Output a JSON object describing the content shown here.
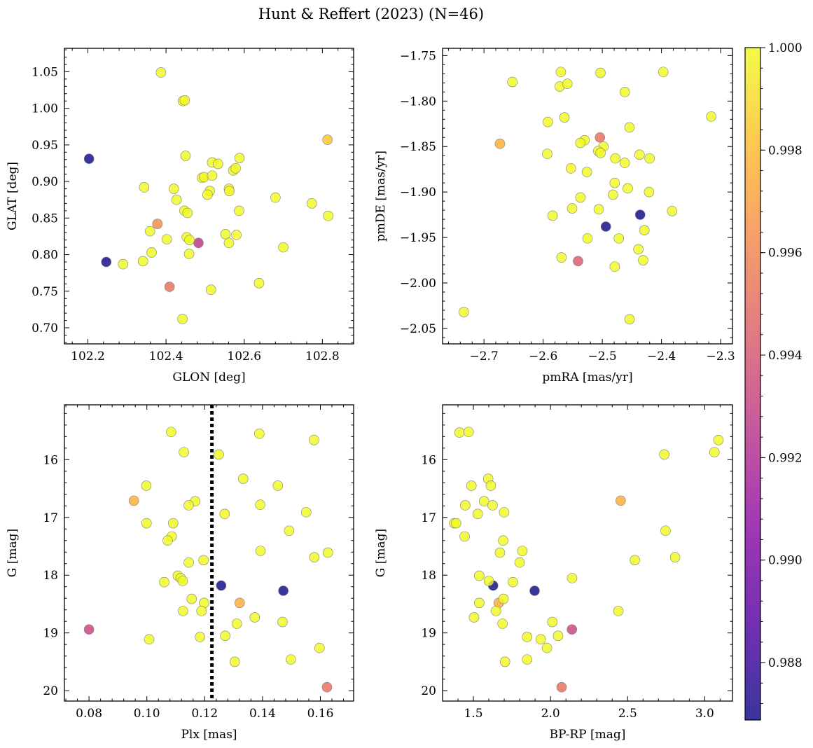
{
  "title": "Hunt & Reffert (2023) (N=46)",
  "colormap": "plasma",
  "colorbar": {
    "range": [
      0.98688,
      1.0
    ],
    "ticks": [
      0.988,
      0.99,
      0.992,
      0.994,
      0.996,
      0.998,
      1.0
    ],
    "tick_labels": [
      "0.988",
      "0.990",
      "0.992",
      "0.994",
      "0.996",
      "0.998",
      "1.000"
    ]
  },
  "chart_data": [
    {
      "type": "scatter",
      "xlabel": "GLON [deg]",
      "ylabel": "GLAT [deg]",
      "xlim": [
        102.14,
        102.88
      ],
      "ylim": [
        0.678,
        1.082
      ],
      "xticks": [
        102.2,
        102.4,
        102.6,
        102.8
      ],
      "xtick_labels": [
        "102.2",
        "102.4",
        "102.6",
        "102.8"
      ],
      "yticks": [
        0.7,
        0.75,
        0.8,
        0.85,
        0.9,
        0.95,
        1.0,
        1.05
      ],
      "ytick_labels": [
        "0.70",
        "0.75",
        "0.80",
        "0.85",
        "0.90",
        "0.95",
        "1.00",
        "1.05"
      ],
      "points": [
        {
          "x": 102.387,
          "y": 1.049,
          "c": 1.0
        },
        {
          "x": 102.443,
          "y": 1.01,
          "c": 1.0
        },
        {
          "x": 102.448,
          "y": 1.011,
          "c": 1.0
        },
        {
          "x": 102.203,
          "y": 0.931,
          "c": 0.98688
        },
        {
          "x": 102.813,
          "y": 0.957,
          "c": 0.9983
        },
        {
          "x": 102.45,
          "y": 0.935,
          "c": 1.0
        },
        {
          "x": 102.518,
          "y": 0.926,
          "c": 1.0
        },
        {
          "x": 102.533,
          "y": 0.924,
          "c": 1.0
        },
        {
          "x": 102.588,
          "y": 0.932,
          "c": 1.0
        },
        {
          "x": 102.572,
          "y": 0.915,
          "c": 1.0
        },
        {
          "x": 102.578,
          "y": 0.918,
          "c": 1.0
        },
        {
          "x": 102.492,
          "y": 0.905,
          "c": 1.0
        },
        {
          "x": 102.497,
          "y": 0.906,
          "c": 1.0
        },
        {
          "x": 102.518,
          "y": 0.908,
          "c": 1.0
        },
        {
          "x": 102.344,
          "y": 0.892,
          "c": 1.0
        },
        {
          "x": 102.42,
          "y": 0.89,
          "c": 1.0
        },
        {
          "x": 102.512,
          "y": 0.887,
          "c": 1.0
        },
        {
          "x": 102.506,
          "y": 0.882,
          "c": 1.0
        },
        {
          "x": 102.561,
          "y": 0.89,
          "c": 1.0
        },
        {
          "x": 102.562,
          "y": 0.887,
          "c": 1.0
        },
        {
          "x": 102.68,
          "y": 0.878,
          "c": 1.0
        },
        {
          "x": 102.427,
          "y": 0.875,
          "c": 1.0
        },
        {
          "x": 102.773,
          "y": 0.87,
          "c": 1.0
        },
        {
          "x": 102.447,
          "y": 0.86,
          "c": 1.0
        },
        {
          "x": 102.455,
          "y": 0.857,
          "c": 1.0
        },
        {
          "x": 102.587,
          "y": 0.86,
          "c": 1.0
        },
        {
          "x": 102.815,
          "y": 0.853,
          "c": 1.0
        },
        {
          "x": 102.378,
          "y": 0.842,
          "c": 0.9963
        },
        {
          "x": 102.359,
          "y": 0.832,
          "c": 1.0
        },
        {
          "x": 102.552,
          "y": 0.828,
          "c": 1.0
        },
        {
          "x": 102.58,
          "y": 0.827,
          "c": 1.0
        },
        {
          "x": 102.453,
          "y": 0.824,
          "c": 1.0
        },
        {
          "x": 102.46,
          "y": 0.82,
          "c": 1.0
        },
        {
          "x": 102.402,
          "y": 0.821,
          "c": 1.0
        },
        {
          "x": 102.483,
          "y": 0.816,
          "c": 0.9925
        },
        {
          "x": 102.561,
          "y": 0.816,
          "c": 1.0
        },
        {
          "x": 102.7,
          "y": 0.81,
          "c": 1.0
        },
        {
          "x": 102.363,
          "y": 0.803,
          "c": 1.0
        },
        {
          "x": 102.459,
          "y": 0.801,
          "c": 1.0
        },
        {
          "x": 102.247,
          "y": 0.79,
          "c": 0.98688
        },
        {
          "x": 102.29,
          "y": 0.787,
          "c": 1.0
        },
        {
          "x": 102.341,
          "y": 0.791,
          "c": 1.0
        },
        {
          "x": 102.638,
          "y": 0.761,
          "c": 1.0
        },
        {
          "x": 102.409,
          "y": 0.756,
          "c": 0.9951
        },
        {
          "x": 102.515,
          "y": 0.752,
          "c": 1.0
        },
        {
          "x": 102.442,
          "y": 0.712,
          "c": 1.0
        }
      ]
    },
    {
      "type": "scatter",
      "xlabel": "pmRA [mas/yr]",
      "ylabel": "pmDE [mas/yr]",
      "xlim": [
        -2.77,
        -2.28
      ],
      "ylim": [
        -2.067,
        -1.742
      ],
      "xticks": [
        -2.7,
        -2.6,
        -2.5,
        -2.4,
        -2.3
      ],
      "xtick_labels": [
        "−2.7",
        "−2.6",
        "−2.5",
        "−2.4",
        "−2.3"
      ],
      "yticks": [
        -2.05,
        -2.0,
        -1.95,
        -1.9,
        -1.85,
        -1.8,
        -1.75
      ],
      "ytick_labels": [
        "−2.05",
        "−2.00",
        "−1.95",
        "−1.90",
        "−1.85",
        "−1.80",
        "−1.75"
      ],
      "points": [
        {
          "x": -2.57,
          "y": -1.768,
          "c": 1.0
        },
        {
          "x": -2.503,
          "y": -1.769,
          "c": 1.0
        },
        {
          "x": -2.397,
          "y": -1.768,
          "c": 1.0
        },
        {
          "x": -2.652,
          "y": -1.779,
          "c": 1.0
        },
        {
          "x": -2.572,
          "y": -1.784,
          "c": 1.0
        },
        {
          "x": -2.559,
          "y": -1.781,
          "c": 1.0
        },
        {
          "x": -2.462,
          "y": -1.79,
          "c": 1.0
        },
        {
          "x": -2.316,
          "y": -1.817,
          "c": 1.0
        },
        {
          "x": -2.564,
          "y": -1.818,
          "c": 1.0
        },
        {
          "x": -2.592,
          "y": -1.823,
          "c": 1.0
        },
        {
          "x": -2.454,
          "y": -1.829,
          "c": 1.0
        },
        {
          "x": -2.673,
          "y": -1.847,
          "c": 0.9975
        },
        {
          "x": -2.504,
          "y": -1.84,
          "c": 0.9951
        },
        {
          "x": -2.53,
          "y": -1.843,
          "c": 1.0
        },
        {
          "x": -2.537,
          "y": -1.846,
          "c": 1.0
        },
        {
          "x": -2.498,
          "y": -1.85,
          "c": 1.0
        },
        {
          "x": -2.507,
          "y": -1.855,
          "c": 1.0
        },
        {
          "x": -2.503,
          "y": -1.857,
          "c": 1.0
        },
        {
          "x": -2.593,
          "y": -1.858,
          "c": 1.0
        },
        {
          "x": -2.437,
          "y": -1.859,
          "c": 1.0
        },
        {
          "x": -2.478,
          "y": -1.863,
          "c": 1.0
        },
        {
          "x": -2.42,
          "y": -1.863,
          "c": 1.0
        },
        {
          "x": -2.462,
          "y": -1.868,
          "c": 1.0
        },
        {
          "x": -2.553,
          "y": -1.874,
          "c": 1.0
        },
        {
          "x": -2.526,
          "y": -1.878,
          "c": 1.0
        },
        {
          "x": -2.479,
          "y": -1.89,
          "c": 1.0
        },
        {
          "x": -2.457,
          "y": -1.896,
          "c": 1.0
        },
        {
          "x": -2.421,
          "y": -1.9,
          "c": 1.0
        },
        {
          "x": -2.482,
          "y": -1.903,
          "c": 1.0
        },
        {
          "x": -2.537,
          "y": -1.906,
          "c": 1.0
        },
        {
          "x": -2.551,
          "y": -1.918,
          "c": 1.0
        },
        {
          "x": -2.506,
          "y": -1.919,
          "c": 1.0
        },
        {
          "x": -2.382,
          "y": -1.921,
          "c": 1.0
        },
        {
          "x": -2.436,
          "y": -1.925,
          "c": 0.98688
        },
        {
          "x": -2.584,
          "y": -1.926,
          "c": 1.0
        },
        {
          "x": -2.494,
          "y": -1.938,
          "c": 0.98688
        },
        {
          "x": -2.429,
          "y": -1.942,
          "c": 1.0
        },
        {
          "x": -2.525,
          "y": -1.951,
          "c": 1.0
        },
        {
          "x": -2.472,
          "y": -1.951,
          "c": 1.0
        },
        {
          "x": -2.439,
          "y": -1.963,
          "c": 1.0
        },
        {
          "x": -2.569,
          "y": -1.972,
          "c": 1.0
        },
        {
          "x": -2.431,
          "y": -1.975,
          "c": 1.0
        },
        {
          "x": -2.541,
          "y": -1.976,
          "c": 0.9942
        },
        {
          "x": -2.479,
          "y": -1.982,
          "c": 1.0
        },
        {
          "x": -2.734,
          "y": -2.032,
          "c": 1.0
        },
        {
          "x": -2.454,
          "y": -2.04,
          "c": 1.0
        }
      ]
    },
    {
      "type": "scatter",
      "xlabel": "Plx [mas]",
      "ylabel": "G [mag]",
      "xlim": [
        0.0715,
        0.1715
      ],
      "ylim": [
        20.18,
        15.05
      ],
      "y_inverted": true,
      "xticks": [
        0.08,
        0.1,
        0.12,
        0.14,
        0.16
      ],
      "xtick_labels": [
        "0.08",
        "0.10",
        "0.12",
        "0.14",
        "0.16"
      ],
      "yticks": [
        16,
        17,
        18,
        19,
        20
      ],
      "ytick_labels": [
        "16",
        "17",
        "18",
        "19",
        "20"
      ],
      "vline": {
        "x": 0.1225,
        "style": "dotted"
      },
      "points": [
        {
          "x": 0.1084,
          "y": 15.52,
          "c": 1.0
        },
        {
          "x": 0.1389,
          "y": 15.55,
          "c": 1.0
        },
        {
          "x": 0.1578,
          "y": 15.66,
          "c": 1.0
        },
        {
          "x": 0.1128,
          "y": 15.87,
          "c": 1.0
        },
        {
          "x": 0.1249,
          "y": 15.91,
          "c": 1.0
        },
        {
          "x": 0.1333,
          "y": 16.33,
          "c": 1.0
        },
        {
          "x": 0.0998,
          "y": 16.45,
          "c": 1.0
        },
        {
          "x": 0.1453,
          "y": 16.45,
          "c": 1.0
        },
        {
          "x": 0.0955,
          "y": 16.71,
          "c": 0.9975
        },
        {
          "x": 0.1167,
          "y": 16.72,
          "c": 1.0
        },
        {
          "x": 0.1145,
          "y": 16.79,
          "c": 1.0
        },
        {
          "x": 0.1392,
          "y": 16.78,
          "c": 1.0
        },
        {
          "x": 0.1551,
          "y": 16.91,
          "c": 1.0
        },
        {
          "x": 0.1269,
          "y": 16.94,
          "c": 1.0
        },
        {
          "x": 0.0999,
          "y": 17.1,
          "c": 1.0
        },
        {
          "x": 0.1091,
          "y": 17.1,
          "c": 1.0
        },
        {
          "x": 0.1492,
          "y": 17.23,
          "c": 1.0
        },
        {
          "x": 0.1086,
          "y": 17.33,
          "c": 1.0
        },
        {
          "x": 0.1072,
          "y": 17.4,
          "c": 1.0
        },
        {
          "x": 0.1393,
          "y": 17.58,
          "c": 1.0
        },
        {
          "x": 0.1626,
          "y": 17.61,
          "c": 1.0
        },
        {
          "x": 0.1579,
          "y": 17.69,
          "c": 1.0
        },
        {
          "x": 0.1196,
          "y": 17.74,
          "c": 1.0
        },
        {
          "x": 0.1145,
          "y": 17.78,
          "c": 1.0
        },
        {
          "x": 0.1107,
          "y": 18.01,
          "c": 1.0
        },
        {
          "x": 0.1117,
          "y": 18.05,
          "c": 1.0
        },
        {
          "x": 0.1124,
          "y": 18.1,
          "c": 1.0
        },
        {
          "x": 0.106,
          "y": 18.12,
          "c": 1.0
        },
        {
          "x": 0.1257,
          "y": 18.18,
          "c": 0.98688
        },
        {
          "x": 0.1472,
          "y": 18.27,
          "c": 0.98688
        },
        {
          "x": 0.1155,
          "y": 18.41,
          "c": 1.0
        },
        {
          "x": 0.1198,
          "y": 18.48,
          "c": 1.0
        },
        {
          "x": 0.1321,
          "y": 18.48,
          "c": 0.9975
        },
        {
          "x": 0.1125,
          "y": 18.62,
          "c": 1.0
        },
        {
          "x": 0.1189,
          "y": 18.62,
          "c": 1.0
        },
        {
          "x": 0.1373,
          "y": 18.73,
          "c": 1.0
        },
        {
          "x": 0.1469,
          "y": 18.81,
          "c": 1.0
        },
        {
          "x": 0.1311,
          "y": 18.84,
          "c": 1.0
        },
        {
          "x": 0.08,
          "y": 18.94,
          "c": 0.9932
        },
        {
          "x": 0.1271,
          "y": 19.05,
          "c": 1.0
        },
        {
          "x": 0.1184,
          "y": 19.07,
          "c": 1.0
        },
        {
          "x": 0.1008,
          "y": 19.11,
          "c": 1.0
        },
        {
          "x": 0.1597,
          "y": 19.26,
          "c": 1.0
        },
        {
          "x": 0.1498,
          "y": 19.46,
          "c": 1.0
        },
        {
          "x": 0.1304,
          "y": 19.5,
          "c": 1.0
        },
        {
          "x": 0.1623,
          "y": 19.94,
          "c": 0.9951
        }
      ]
    },
    {
      "type": "scatter",
      "xlabel": "BP-RP [mag]",
      "ylabel": "G [mag]",
      "xlim": [
        1.3,
        3.18
      ],
      "ylim": [
        20.18,
        15.05
      ],
      "y_inverted": true,
      "xticks": [
        1.5,
        2.0,
        2.5,
        3.0
      ],
      "xtick_labels": [
        "1.5",
        "2.0",
        "2.5",
        "3.0"
      ],
      "yticks": [
        16,
        17,
        18,
        19,
        20
      ],
      "ytick_labels": [
        "16",
        "17",
        "18",
        "19",
        "20"
      ],
      "points": [
        {
          "x": 1.41,
          "y": 15.53,
          "c": 1.0
        },
        {
          "x": 1.469,
          "y": 15.52,
          "c": 1.0
        },
        {
          "x": 3.089,
          "y": 15.66,
          "c": 1.0
        },
        {
          "x": 3.063,
          "y": 15.87,
          "c": 1.0
        },
        {
          "x": 2.738,
          "y": 15.91,
          "c": 1.0
        },
        {
          "x": 1.596,
          "y": 16.33,
          "c": 1.0
        },
        {
          "x": 1.487,
          "y": 16.45,
          "c": 1.0
        },
        {
          "x": 1.613,
          "y": 16.45,
          "c": 1.0
        },
        {
          "x": 2.455,
          "y": 16.71,
          "c": 0.9975
        },
        {
          "x": 1.569,
          "y": 16.72,
          "c": 1.0
        },
        {
          "x": 1.447,
          "y": 16.79,
          "c": 1.0
        },
        {
          "x": 1.624,
          "y": 16.79,
          "c": 1.0
        },
        {
          "x": 1.699,
          "y": 16.91,
          "c": 1.0
        },
        {
          "x": 1.528,
          "y": 16.94,
          "c": 1.0
        },
        {
          "x": 1.375,
          "y": 17.1,
          "c": 1.0
        },
        {
          "x": 1.388,
          "y": 17.1,
          "c": 1.0
        },
        {
          "x": 2.746,
          "y": 17.23,
          "c": 1.0
        },
        {
          "x": 1.443,
          "y": 17.33,
          "c": 1.0
        },
        {
          "x": 1.693,
          "y": 17.4,
          "c": 1.0
        },
        {
          "x": 1.817,
          "y": 17.58,
          "c": 1.0
        },
        {
          "x": 1.672,
          "y": 17.61,
          "c": 1.0
        },
        {
          "x": 2.808,
          "y": 17.69,
          "c": 1.0
        },
        {
          "x": 2.547,
          "y": 17.74,
          "c": 1.0
        },
        {
          "x": 1.8,
          "y": 17.78,
          "c": 1.0
        },
        {
          "x": 1.538,
          "y": 18.01,
          "c": 1.0
        },
        {
          "x": 2.14,
          "y": 18.05,
          "c": 1.0
        },
        {
          "x": 1.6,
          "y": 18.1,
          "c": 1.0
        },
        {
          "x": 1.756,
          "y": 18.12,
          "c": 1.0
        },
        {
          "x": 1.628,
          "y": 18.18,
          "c": 0.98688
        },
        {
          "x": 1.897,
          "y": 18.27,
          "c": 0.98688
        },
        {
          "x": 1.695,
          "y": 18.41,
          "c": 1.0
        },
        {
          "x": 1.538,
          "y": 18.48,
          "c": 1.0
        },
        {
          "x": 1.664,
          "y": 18.48,
          "c": 0.9975
        },
        {
          "x": 1.647,
          "y": 18.62,
          "c": 1.0
        },
        {
          "x": 2.44,
          "y": 18.62,
          "c": 1.0
        },
        {
          "x": 1.504,
          "y": 18.73,
          "c": 1.0
        },
        {
          "x": 2.012,
          "y": 18.81,
          "c": 1.0
        },
        {
          "x": 1.689,
          "y": 18.84,
          "c": 1.0
        },
        {
          "x": 2.139,
          "y": 18.94,
          "c": 0.9932
        },
        {
          "x": 2.049,
          "y": 19.05,
          "c": 1.0
        },
        {
          "x": 1.848,
          "y": 19.07,
          "c": 1.0
        },
        {
          "x": 1.937,
          "y": 19.11,
          "c": 1.0
        },
        {
          "x": 1.977,
          "y": 19.26,
          "c": 1.0
        },
        {
          "x": 1.848,
          "y": 19.46,
          "c": 1.0
        },
        {
          "x": 1.705,
          "y": 19.5,
          "c": 1.0
        },
        {
          "x": 2.072,
          "y": 19.94,
          "c": 0.9951
        }
      ]
    }
  ]
}
